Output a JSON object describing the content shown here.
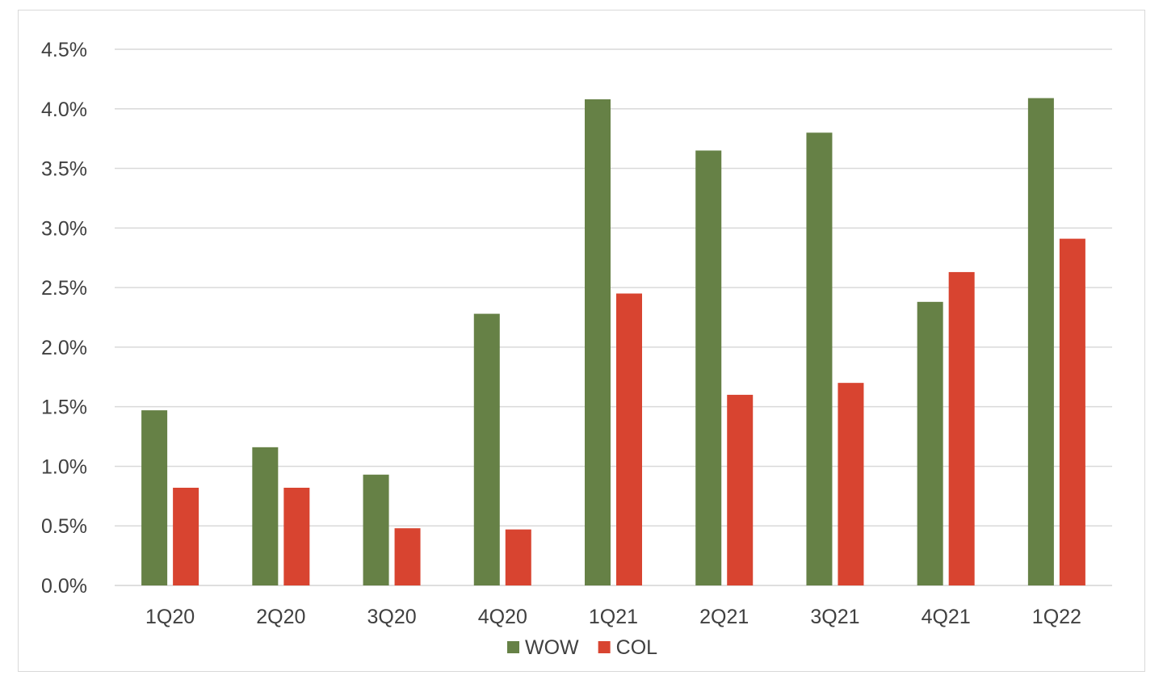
{
  "chart_data": {
    "type": "bar",
    "title": "",
    "xlabel": "",
    "ylabel": "",
    "categories": [
      "1Q20",
      "2Q20",
      "3Q20",
      "4Q20",
      "1Q21",
      "2Q21",
      "3Q21",
      "4Q21",
      "1Q22"
    ],
    "series": [
      {
        "name": "WOW",
        "color": "#668146",
        "values": [
          1.47,
          1.16,
          0.93,
          2.28,
          4.08,
          3.65,
          3.8,
          2.38,
          4.09
        ]
      },
      {
        "name": "COL",
        "color": "#d84430",
        "values": [
          0.82,
          0.82,
          0.48,
          0.47,
          2.45,
          1.6,
          1.7,
          2.63,
          2.91
        ]
      }
    ],
    "ylim": [
      0,
      4.5
    ],
    "yticks": [
      0,
      0.5,
      1.0,
      1.5,
      2.0,
      2.5,
      3.0,
      3.5,
      4.0,
      4.5
    ],
    "ytick_labels": [
      "0.0%",
      "0.5%",
      "1.0%",
      "1.5%",
      "2.0%",
      "2.5%",
      "3.0%",
      "3.5%",
      "4.0%",
      "4.5%"
    ],
    "grid": true,
    "legend_position": "bottom"
  }
}
